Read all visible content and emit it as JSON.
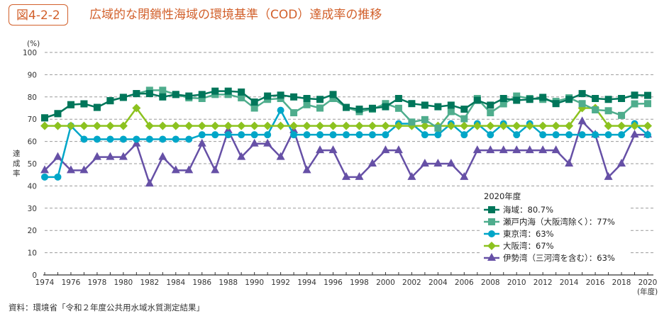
{
  "figure": {
    "badge": "図4-2-2",
    "title": "広域的な閉鎖性海域の環境基準（COD）達成率の推移",
    "source": "資料：環境省「令和２年度公共用水域水質測定結果」",
    "accent_color": "#d2602b"
  },
  "chart_data": {
    "type": "line",
    "title": "広域的な閉鎖性海域の環境基準（COD）達成率の推移",
    "xlabel": "(年度)",
    "ylabel": "達成率",
    "y_unit": "(%)",
    "ylim": [
      0,
      100
    ],
    "xlim": [
      1974,
      2020
    ],
    "y_ticks": [
      0,
      10,
      20,
      30,
      40,
      50,
      60,
      70,
      80,
      90,
      100
    ],
    "x_tick_labels": [
      "1974",
      "1976",
      "1978",
      "1980",
      "1982",
      "1984",
      "1986",
      "1988",
      "1990",
      "1992",
      "1994",
      "1996",
      "1998",
      "2000",
      "2002",
      "2004",
      "2006",
      "2008",
      "2010",
      "2012",
      "2014",
      "2016",
      "2018",
      "2020"
    ],
    "grid": "horizontal-dashed",
    "legend_title": "2020年度",
    "legend_position": "bottom-right",
    "x": [
      1974,
      1975,
      1976,
      1977,
      1978,
      1979,
      1980,
      1981,
      1982,
      1983,
      1984,
      1985,
      1986,
      1987,
      1988,
      1989,
      1990,
      1991,
      1992,
      1993,
      1994,
      1995,
      1996,
      1997,
      1998,
      1999,
      2000,
      2001,
      2002,
      2003,
      2004,
      2005,
      2006,
      2007,
      2008,
      2009,
      2010,
      2011,
      2012,
      2013,
      2014,
      2015,
      2016,
      2017,
      2018,
      2019,
      2020
    ],
    "series": [
      {
        "name": "海域",
        "legend_label": "海域：80.7%",
        "color": "#00765a",
        "marker": "square",
        "values": [
          70.6,
          72.5,
          76.5,
          76.9,
          75.3,
          78.3,
          79.8,
          81.5,
          81.5,
          80.0,
          81.1,
          80.4,
          81.1,
          82.6,
          82.6,
          82.2,
          77.7,
          80.4,
          80.8,
          80.0,
          79.3,
          78.9,
          81.1,
          75.3,
          74.5,
          74.9,
          75.6,
          79.3,
          77.0,
          76.3,
          75.6,
          76.3,
          74.5,
          78.5,
          76.3,
          79.3,
          78.5,
          78.9,
          79.8,
          77.0,
          78.9,
          81.5,
          79.3,
          78.9,
          79.3,
          80.8,
          80.7
        ]
      },
      {
        "name": "瀬戸内海（大阪湾除く）",
        "legend_label": "瀬戸内海（大阪湾除く）：77%",
        "color": "#4fad8d",
        "marker": "square",
        "values": [
          70.6,
          72.5,
          76.5,
          76.9,
          75.3,
          78.3,
          79.8,
          81.5,
          83.0,
          83.0,
          81.1,
          79.6,
          79.3,
          81.1,
          81.1,
          79.6,
          75.0,
          78.9,
          79.3,
          72.9,
          76.5,
          75.0,
          79.3,
          75.3,
          73.4,
          74.5,
          77.0,
          74.9,
          68.7,
          69.8,
          66.0,
          73.4,
          70.2,
          79.3,
          72.9,
          76.9,
          80.4,
          79.3,
          78.9,
          78.0,
          79.6,
          77.0,
          74.2,
          73.8,
          71.7,
          76.9,
          77.0
        ]
      },
      {
        "name": "東京湾",
        "legend_label": "東京湾：63%",
        "color": "#00a6c8",
        "marker": "circle",
        "values": [
          44,
          44,
          67,
          61,
          61,
          61,
          61,
          61,
          61,
          61,
          61,
          61,
          63,
          63,
          63,
          63,
          63,
          63,
          74,
          63,
          63,
          63,
          63,
          63,
          63,
          63,
          63,
          68,
          68,
          63,
          63,
          68,
          63,
          68,
          63,
          68,
          63,
          68,
          63,
          63,
          63,
          63,
          63,
          63,
          63,
          68,
          63
        ]
      },
      {
        "name": "大阪湾",
        "legend_label": "大阪湾：67%",
        "color": "#8cc21f",
        "marker": "diamond",
        "values": [
          67,
          67,
          67,
          67,
          67,
          67,
          67,
          75,
          67,
          67,
          67,
          67,
          67,
          67,
          67,
          67,
          67,
          67,
          67,
          67,
          67,
          67,
          67,
          67,
          67,
          67,
          67,
          67,
          67,
          67,
          67,
          67,
          67,
          67,
          67,
          67,
          67,
          67,
          67,
          67,
          67,
          75,
          75,
          67,
          67,
          67,
          67
        ]
      },
      {
        "name": "伊勢湾（三河湾を含む）",
        "legend_label": "伊勢湾（三河湾を含む）：63%",
        "color": "#6650a6",
        "marker": "triangle",
        "values": [
          47,
          53,
          47,
          47,
          53,
          53,
          53,
          59,
          41,
          53,
          47,
          47,
          59,
          47,
          65,
          53,
          59,
          59,
          53,
          65,
          47,
          56,
          56,
          44,
          44,
          50,
          56,
          56,
          44,
          50,
          50,
          50,
          44,
          56,
          56,
          56,
          56,
          56,
          56,
          56,
          50,
          69,
          63,
          44,
          50,
          63,
          63
        ]
      }
    ]
  }
}
